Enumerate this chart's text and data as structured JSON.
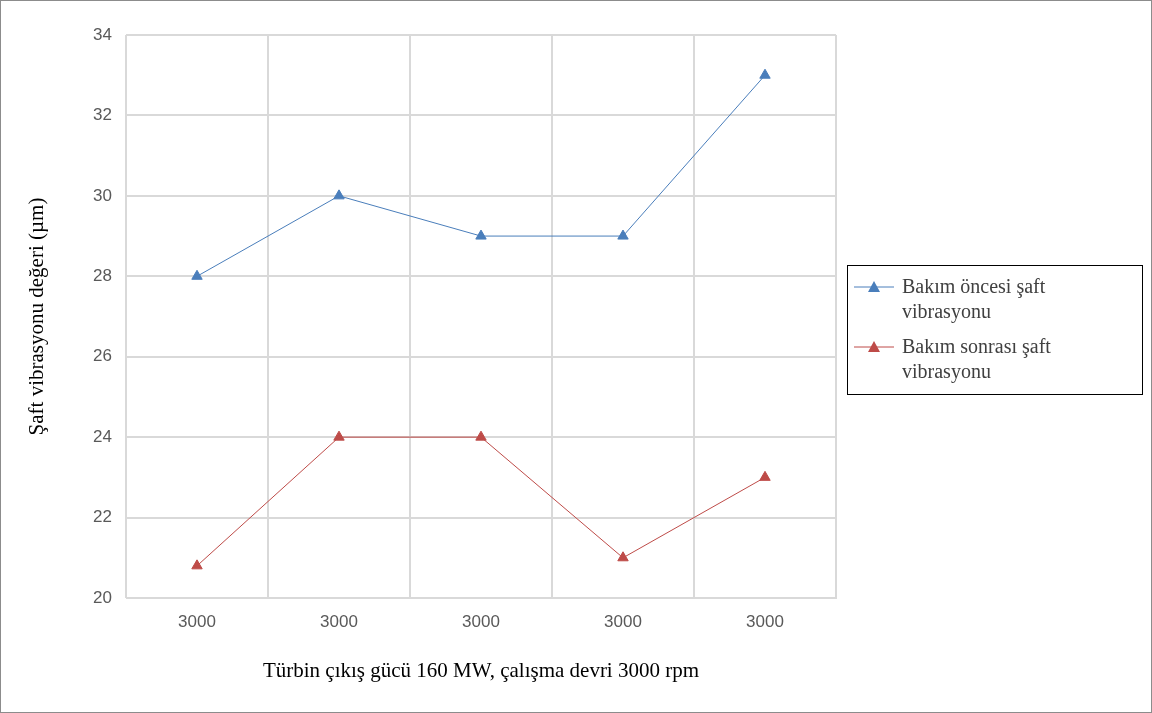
{
  "chart_data": {
    "type": "line",
    "xlabel": "Türbin çıkış gücü 160 MW, çalışma devri 3000 rpm",
    "ylabel": "Şaft vibrasyonu değeri (µm)",
    "categories": [
      "3000",
      "3000",
      "3000",
      "3000",
      "3000"
    ],
    "series": [
      {
        "name": "Bakım öncesi şaft vibrasyonu",
        "color": "#4a7ebb",
        "values": [
          28,
          30,
          29,
          29,
          33
        ]
      },
      {
        "name": "Bakım sonrası şaft vibrasyonu",
        "color": "#be4b48",
        "values": [
          20.8,
          24,
          24,
          21,
          23
        ]
      }
    ],
    "ylim": [
      20,
      34
    ],
    "yticks": [
      20,
      22,
      24,
      26,
      28,
      30,
      32,
      34
    ],
    "grid": true,
    "legend": "right",
    "marker": "triangle",
    "line_style": "solid"
  }
}
